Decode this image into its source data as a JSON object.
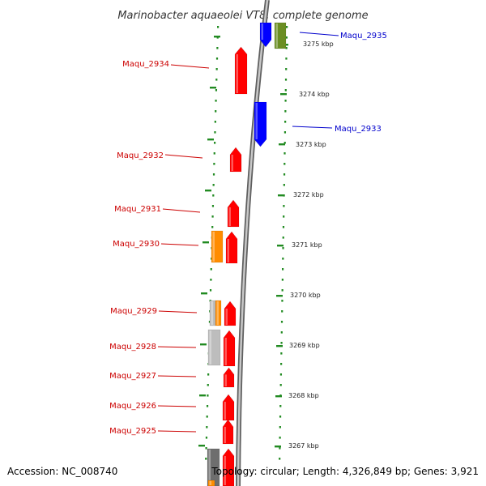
{
  "title": "Marinobacter aquaeolei VT8, complete genome",
  "accession_text": "Accession: NC_008740",
  "summary_text": "Topology: circular; Length: 4,326,849 bp; Genes: 3,921",
  "colors": {
    "label_left": "#cc0000",
    "label_right": "#0000cc",
    "tick": "#228b22",
    "backbone": "#8a8a8a",
    "red": "#ff0000",
    "blue": "#0000ff",
    "orange": "#ff8c00",
    "olive": "#6b8e23",
    "gray": "#bdbdbd",
    "darkgray": "#6e6e6e"
  },
  "scale_labels": [
    "3275 kbp",
    "3274 kbp",
    "3273 kbp",
    "3272 kbp",
    "3271 kbp",
    "3270 kbp",
    "3269 kbp",
    "3268 kbp",
    "3267 kbp"
  ],
  "gene_labels_left": [
    "Maqu_2934",
    "Maqu_2932",
    "Maqu_2931",
    "Maqu_2930",
    "Maqu_2929",
    "Maqu_2928",
    "Maqu_2927",
    "Maqu_2926",
    "Maqu_2925"
  ],
  "gene_labels_right": [
    "Maqu_2935",
    "Maqu_2933"
  ]
}
